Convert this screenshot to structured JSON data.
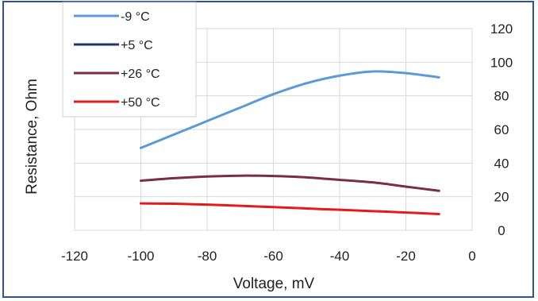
{
  "chart_data": {
    "type": "line",
    "title": "",
    "xlabel": "Voltage, mV",
    "ylabel": "Resistance, Ohm",
    "xlim": [
      -120,
      0
    ],
    "ylim": [
      0,
      120
    ],
    "x_ticks": [
      -120,
      -100,
      -80,
      -60,
      -40,
      -20,
      0
    ],
    "y_ticks": [
      0,
      20,
      40,
      60,
      80,
      100,
      120
    ],
    "y_axis_side": "right",
    "grid": {
      "horizontal": true,
      "vertical": true
    },
    "legend_position": "top-left",
    "series": [
      {
        "name": "-9 °C",
        "color": "#5b9bd5",
        "x": [
          -100,
          -90,
          -80,
          -70,
          -60,
          -50,
          -40,
          -30,
          -20,
          -10
        ],
        "y": [
          49,
          57,
          65,
          73,
          81,
          87.5,
          92,
          94.5,
          93.5,
          91
        ]
      },
      {
        "name": "+5 °C",
        "color": "#1f3864",
        "x": [],
        "y": []
      },
      {
        "name": "+26 °C",
        "color": "#7b2c46",
        "x": [
          -100,
          -90,
          -80,
          -70,
          -60,
          -50,
          -40,
          -30,
          -20,
          -10
        ],
        "y": [
          29.5,
          31,
          32,
          32.5,
          32.3,
          31.5,
          30,
          28.5,
          26,
          23.5
        ]
      },
      {
        "name": "+50 °C",
        "color": "#e41a1c",
        "x": [
          -100,
          -90,
          -80,
          -70,
          -60,
          -50,
          -40,
          -30,
          -20,
          -10
        ],
        "y": [
          16,
          15.8,
          15.3,
          14.6,
          13.8,
          13,
          12.2,
          11.4,
          10.6,
          9.7
        ]
      }
    ]
  }
}
